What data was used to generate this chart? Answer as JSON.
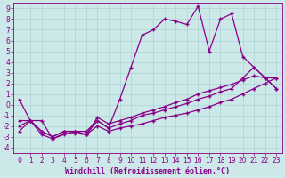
{
  "xlabel": "Windchill (Refroidissement éolien,°C)",
  "background_color": "#cde8e8",
  "line_color": "#880088",
  "grid_color": "#aad4d4",
  "xlim": [
    -0.5,
    23.5
  ],
  "ylim": [
    -4.5,
    9.5
  ],
  "xticks": [
    0,
    1,
    2,
    3,
    4,
    5,
    6,
    7,
    8,
    9,
    10,
    11,
    12,
    13,
    14,
    15,
    16,
    17,
    18,
    19,
    20,
    21,
    22,
    23
  ],
  "yticks": [
    -4,
    -3,
    -2,
    -1,
    0,
    1,
    2,
    3,
    4,
    5,
    6,
    7,
    8,
    9
  ],
  "series1_x": [
    0,
    1,
    2,
    3,
    4,
    5,
    6,
    7,
    8,
    9,
    10,
    11,
    12,
    13,
    14,
    15,
    16,
    17,
    18,
    19,
    20,
    21,
    22,
    23
  ],
  "series1_y": [
    0.5,
    -1.5,
    -1.5,
    -3.2,
    -2.7,
    -2.7,
    -2.8,
    -1.5,
    -2.2,
    0.5,
    3.5,
    6.5,
    7.0,
    8.0,
    7.8,
    7.5,
    9.2,
    5.0,
    8.0,
    8.5,
    4.5,
    3.5,
    2.5,
    1.5
  ],
  "series2_x": [
    0,
    1,
    2,
    3,
    4,
    5,
    6,
    7,
    8,
    9,
    10,
    11,
    12,
    13,
    14,
    15,
    16,
    17,
    18,
    19,
    20,
    21,
    22,
    23
  ],
  "series2_y": [
    -1.5,
    -1.5,
    -2.5,
    -3.0,
    -2.5,
    -2.5,
    -2.5,
    -1.5,
    -2.2,
    -1.8,
    -1.5,
    -1.0,
    -0.8,
    -0.5,
    -0.2,
    0.1,
    0.5,
    0.8,
    1.2,
    1.5,
    2.5,
    3.5,
    2.5,
    1.5
  ],
  "series3_x": [
    0,
    1,
    2,
    3,
    4,
    5,
    6,
    7,
    8,
    9,
    10,
    11,
    12,
    13,
    14,
    15,
    16,
    17,
    18,
    19,
    20,
    21,
    22,
    23
  ],
  "series3_y": [
    -2.0,
    -1.5,
    -2.5,
    -3.0,
    -2.5,
    -2.5,
    -2.8,
    -1.2,
    -1.8,
    -1.5,
    -1.2,
    -0.8,
    -0.5,
    -0.2,
    0.2,
    0.5,
    1.0,
    1.3,
    1.6,
    1.9,
    2.3,
    2.7,
    2.5,
    2.5
  ],
  "series4_x": [
    0,
    1,
    2,
    3,
    4,
    5,
    6,
    7,
    8,
    9,
    10,
    11,
    12,
    13,
    14,
    15,
    16,
    17,
    18,
    19,
    20,
    21,
    22,
    23
  ],
  "series4_y": [
    -2.5,
    -1.5,
    -2.8,
    -3.2,
    -2.8,
    -2.5,
    -2.8,
    -2.0,
    -2.5,
    -2.2,
    -2.0,
    -1.8,
    -1.5,
    -1.2,
    -1.0,
    -0.8,
    -0.5,
    -0.2,
    0.2,
    0.5,
    1.0,
    1.5,
    2.0,
    2.5
  ],
  "marker": "+",
  "markersize": 3.5,
  "linewidth": 0.9,
  "tick_fontsize": 5.5,
  "xlabel_fontsize": 6.0
}
